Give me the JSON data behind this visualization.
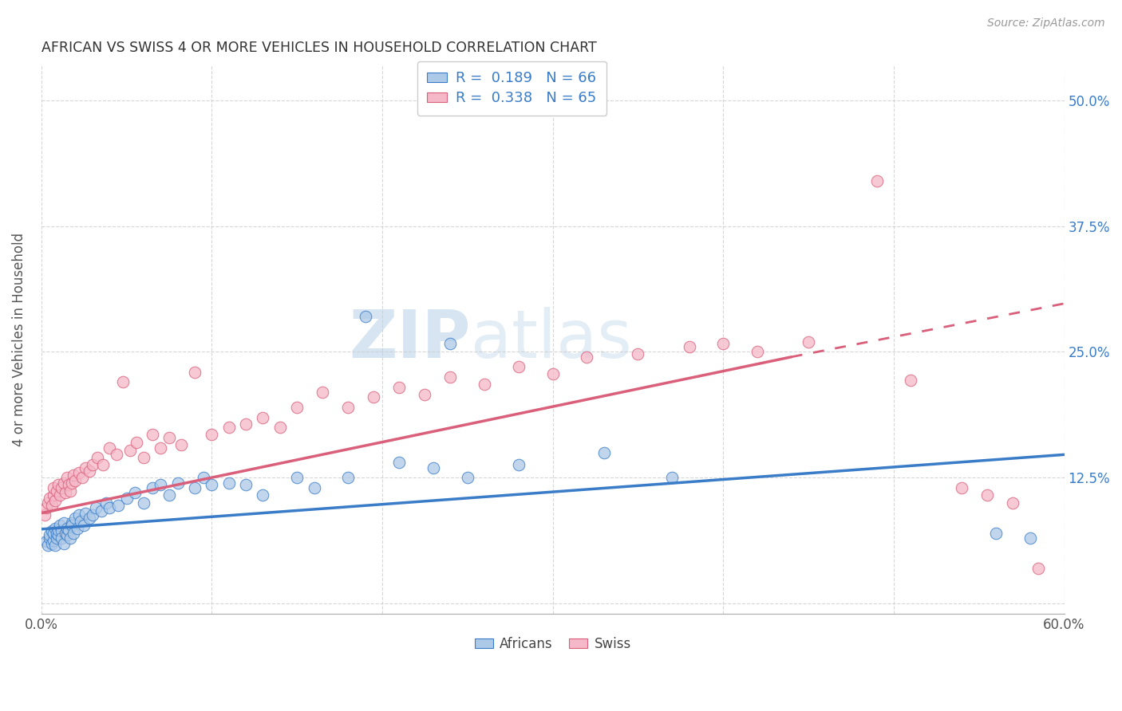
{
  "title": "AFRICAN VS SWISS 4 OR MORE VEHICLES IN HOUSEHOLD CORRELATION CHART",
  "source": "Source: ZipAtlas.com",
  "ylabel": "4 or more Vehicles in Household",
  "xlim": [
    0.0,
    0.6
  ],
  "ylim": [
    -0.01,
    0.535
  ],
  "legend_africans_R": "0.189",
  "legend_africans_N": "66",
  "legend_swiss_R": "0.338",
  "legend_swiss_N": "65",
  "africans_color": "#adc9e8",
  "swiss_color": "#f5b8c8",
  "trend_african_color": "#3a7cc7",
  "trend_swiss_color": "#d95f7a",
  "watermark_zip": "ZIP",
  "watermark_atlas": "atlas",
  "africans_x": [
    0.003,
    0.004,
    0.005,
    0.005,
    0.006,
    0.006,
    0.007,
    0.007,
    0.008,
    0.008,
    0.009,
    0.009,
    0.01,
    0.01,
    0.011,
    0.012,
    0.012,
    0.013,
    0.013,
    0.014,
    0.015,
    0.015,
    0.016,
    0.017,
    0.018,
    0.018,
    0.019,
    0.02,
    0.021,
    0.022,
    0.023,
    0.025,
    0.026,
    0.028,
    0.03,
    0.032,
    0.035,
    0.038,
    0.04,
    0.045,
    0.05,
    0.055,
    0.06,
    0.065,
    0.07,
    0.075,
    0.08,
    0.09,
    0.095,
    0.1,
    0.11,
    0.12,
    0.13,
    0.15,
    0.16,
    0.18,
    0.19,
    0.21,
    0.23,
    0.24,
    0.25,
    0.28,
    0.33,
    0.37,
    0.56,
    0.58
  ],
  "africans_y": [
    0.062,
    0.058,
    0.065,
    0.068,
    0.06,
    0.072,
    0.063,
    0.07,
    0.058,
    0.075,
    0.065,
    0.07,
    0.068,
    0.073,
    0.078,
    0.072,
    0.065,
    0.08,
    0.06,
    0.07,
    0.068,
    0.075,
    0.073,
    0.065,
    0.08,
    0.078,
    0.07,
    0.085,
    0.075,
    0.088,
    0.082,
    0.078,
    0.09,
    0.085,
    0.088,
    0.095,
    0.092,
    0.1,
    0.095,
    0.098,
    0.105,
    0.11,
    0.1,
    0.115,
    0.118,
    0.108,
    0.12,
    0.115,
    0.125,
    0.118,
    0.12,
    0.118,
    0.108,
    0.125,
    0.115,
    0.125,
    0.285,
    0.14,
    0.135,
    0.258,
    0.125,
    0.138,
    0.15,
    0.125,
    0.07,
    0.065
  ],
  "swiss_x": [
    0.002,
    0.003,
    0.004,
    0.005,
    0.006,
    0.007,
    0.007,
    0.008,
    0.009,
    0.01,
    0.011,
    0.012,
    0.013,
    0.014,
    0.015,
    0.016,
    0.017,
    0.018,
    0.019,
    0.02,
    0.022,
    0.024,
    0.026,
    0.028,
    0.03,
    0.033,
    0.036,
    0.04,
    0.044,
    0.048,
    0.052,
    0.056,
    0.06,
    0.065,
    0.07,
    0.075,
    0.082,
    0.09,
    0.1,
    0.11,
    0.12,
    0.13,
    0.14,
    0.15,
    0.165,
    0.18,
    0.195,
    0.21,
    0.225,
    0.24,
    0.26,
    0.28,
    0.3,
    0.32,
    0.35,
    0.38,
    0.4,
    0.42,
    0.45,
    0.49,
    0.51,
    0.54,
    0.555,
    0.57,
    0.585
  ],
  "swiss_y": [
    0.088,
    0.095,
    0.1,
    0.105,
    0.098,
    0.108,
    0.115,
    0.102,
    0.112,
    0.118,
    0.108,
    0.115,
    0.12,
    0.11,
    0.125,
    0.118,
    0.112,
    0.12,
    0.128,
    0.122,
    0.13,
    0.125,
    0.135,
    0.132,
    0.138,
    0.145,
    0.138,
    0.155,
    0.148,
    0.22,
    0.152,
    0.16,
    0.145,
    0.168,
    0.155,
    0.165,
    0.158,
    0.23,
    0.168,
    0.175,
    0.178,
    0.185,
    0.175,
    0.195,
    0.21,
    0.195,
    0.205,
    0.215,
    0.208,
    0.225,
    0.218,
    0.235,
    0.228,
    0.245,
    0.248,
    0.255,
    0.258,
    0.25,
    0.26,
    0.42,
    0.222,
    0.115,
    0.108,
    0.1,
    0.035
  ],
  "trend_african_x0": 0.0,
  "trend_african_y0": 0.074,
  "trend_african_x1": 0.6,
  "trend_african_y1": 0.148,
  "trend_swiss_solid_x0": 0.0,
  "trend_swiss_solid_y0": 0.09,
  "trend_swiss_solid_x1": 0.44,
  "trend_swiss_solid_y1": 0.245,
  "trend_swiss_dash_x0": 0.44,
  "trend_swiss_dash_y0": 0.245,
  "trend_swiss_dash_x1": 0.6,
  "trend_swiss_dash_y1": 0.298
}
